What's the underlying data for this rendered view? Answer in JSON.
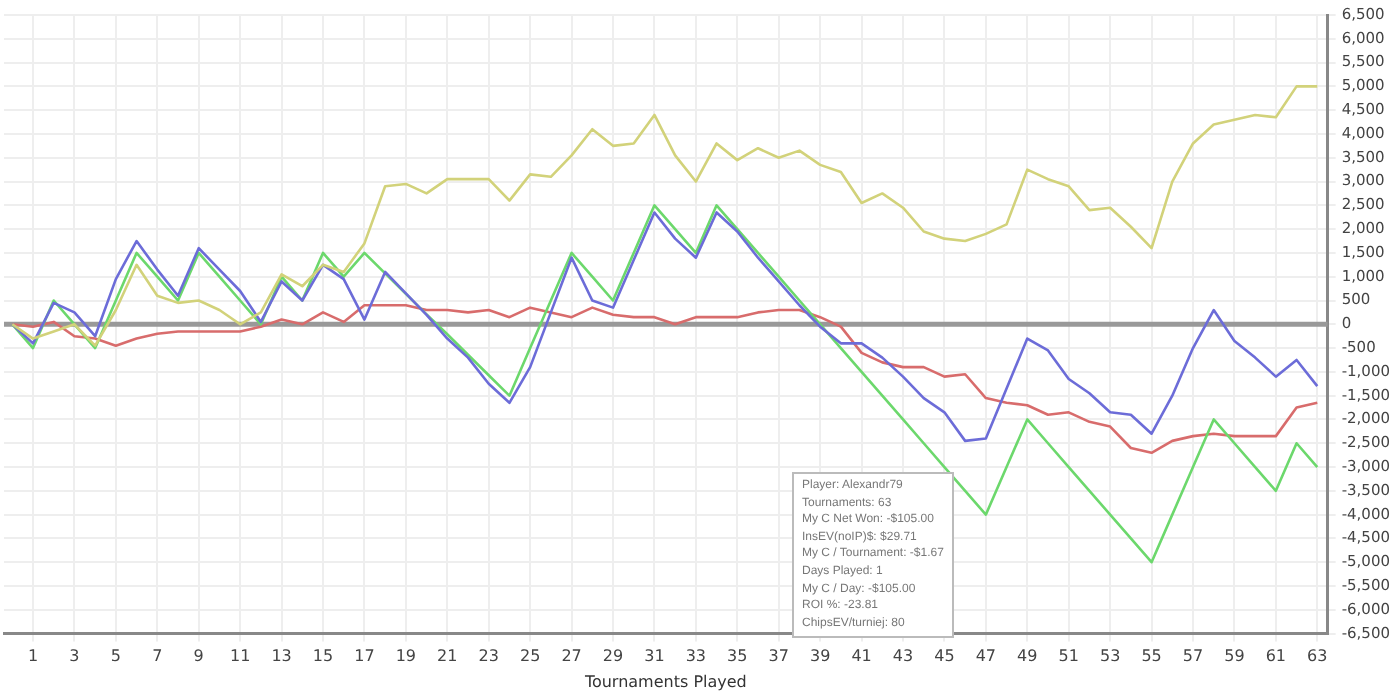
{
  "chart_data": {
    "type": "line",
    "xlabel": "Tournaments Played",
    "x": [
      0,
      1,
      2,
      3,
      4,
      5,
      6,
      7,
      8,
      9,
      10,
      11,
      12,
      13,
      14,
      15,
      16,
      17,
      18,
      19,
      20,
      21,
      22,
      23,
      24,
      25,
      26,
      27,
      28,
      29,
      30,
      31,
      32,
      33,
      34,
      35,
      36,
      37,
      38,
      39,
      40,
      41,
      42,
      43,
      44,
      45,
      46,
      47,
      48,
      49,
      50,
      51,
      52,
      53,
      54,
      55,
      56,
      57,
      58,
      59,
      60,
      61,
      62,
      63
    ],
    "series": [
      {
        "color": "#d2d27a",
        "values": [
          0,
          -300,
          -150,
          0,
          -450,
          300,
          1250,
          600,
          450,
          500,
          300,
          0,
          250,
          1050,
          800,
          1250,
          1100,
          1700,
          2900,
          2950,
          2750,
          3050,
          3050,
          3050,
          2600,
          3150,
          3100,
          3550,
          4100,
          3750,
          3800,
          4400,
          3550,
          3000,
          3800,
          3450,
          3700,
          3500,
          3650,
          3350,
          3200,
          2550,
          2750,
          2450,
          1950,
          1800,
          1750,
          1900,
          2100,
          3250,
          3050,
          2900,
          2400,
          2450,
          2050,
          1600,
          3000,
          3800,
          4200,
          4300,
          4400,
          4350,
          5000,
          5000
        ]
      },
      {
        "color": "#6c6cd8",
        "values": [
          0,
          -400,
          450,
          250,
          -250,
          950,
          1750,
          1150,
          600,
          1600,
          1150,
          700,
          50,
          900,
          500,
          1250,
          950,
          100,
          1100,
          650,
          200,
          -300,
          -700,
          -1250,
          -1650,
          -900,
          250,
          1400,
          500,
          350,
          1350,
          2350,
          1800,
          1400,
          2350,
          1950,
          1400,
          900,
          400,
          -50,
          -400,
          -400,
          -700,
          -1100,
          -1550,
          -1850,
          -2450,
          -2400,
          -1350,
          -300,
          -550,
          -1150,
          -1450,
          -1850,
          -1900,
          -2300,
          -1500,
          -500,
          300,
          -350,
          -700,
          -1100,
          -750,
          -1300
        ]
      },
      {
        "color": "#6cd86c",
        "values": [
          0,
          -500,
          500,
          0,
          -500,
          500,
          1500,
          1000,
          500,
          1500,
          1000,
          500,
          0,
          1000,
          500,
          1500,
          1000,
          1500,
          1070,
          640,
          210,
          -210,
          -640,
          -1070,
          -1500,
          -500,
          500,
          1500,
          1000,
          500,
          1500,
          2500,
          2000,
          1500,
          2500,
          2000,
          1500,
          1000,
          500,
          0,
          -500,
          -1000,
          -1500,
          -2000,
          -2500,
          -3000,
          -3500,
          -4000,
          -3000,
          -2000,
          -2500,
          -3000,
          -3500,
          -4000,
          -4500,
          -5000,
          -4000,
          -3000,
          -2000,
          -2500,
          -3000,
          -3500,
          -2500,
          -3000
        ]
      },
      {
        "color": "#d86c6c",
        "values": [
          0,
          -50,
          50,
          -250,
          -300,
          -450,
          -300,
          -200,
          -150,
          -150,
          -150,
          -150,
          -50,
          100,
          0,
          250,
          50,
          400,
          400,
          400,
          300,
          300,
          250,
          300,
          150,
          350,
          250,
          150,
          350,
          200,
          150,
          150,
          0,
          150,
          150,
          150,
          250,
          300,
          300,
          150,
          -50,
          -600,
          -800,
          -900,
          -900,
          -1100,
          -1050,
          -1550,
          -1650,
          -1700,
          -1900,
          -1850,
          -2050,
          -2150,
          -2600,
          -2700,
          -2450,
          -2350,
          -2300,
          -2350,
          -2350,
          -2350,
          -1750,
          -1650
        ]
      }
    ],
    "xlim": [
      -0.4,
      63.5
    ],
    "xticks": [
      1,
      3,
      5,
      7,
      9,
      11,
      13,
      15,
      17,
      19,
      21,
      23,
      25,
      27,
      29,
      31,
      33,
      35,
      37,
      39,
      41,
      43,
      45,
      47,
      49,
      51,
      53,
      55,
      57,
      59,
      61,
      63
    ],
    "ylim": [
      -6500,
      6500
    ],
    "yticks": [
      {
        "value": -6500,
        "label": "-6,500"
      },
      {
        "value": -6000,
        "label": "-6,000"
      },
      {
        "value": -5500,
        "label": "-5,500"
      },
      {
        "value": -5000,
        "label": "-5,000"
      },
      {
        "value": -4500,
        "label": "-4,500"
      },
      {
        "value": -4000,
        "label": "-4,000"
      },
      {
        "value": -3500,
        "label": "-3,500"
      },
      {
        "value": -3000,
        "label": "-3,000"
      },
      {
        "value": -2500,
        "label": "-2,500"
      },
      {
        "value": -2000,
        "label": "-2,000"
      },
      {
        "value": -1500,
        "label": "-1,500"
      },
      {
        "value": -1000,
        "label": "-1,000"
      },
      -500,
      0,
      500,
      {
        "value": 1000,
        "label": "1,000"
      },
      {
        "value": 1500,
        "label": "1,500"
      },
      {
        "value": 2000,
        "label": "2,000"
      },
      {
        "value": 2500,
        "label": "2,500"
      },
      {
        "value": 3000,
        "label": "3,000"
      },
      {
        "value": 3500,
        "label": "3,500"
      },
      {
        "value": 4000,
        "label": "4,000"
      },
      {
        "value": 4500,
        "label": "4,500"
      },
      {
        "value": 5000,
        "label": "5,000"
      },
      {
        "value": 5500,
        "label": "5,500"
      },
      {
        "value": 6000,
        "label": "6,000"
      },
      {
        "value": 6500,
        "label": "6,500"
      }
    ],
    "ref_lines": [
      {
        "axis": "y",
        "value": 0,
        "color": "#999999"
      }
    ],
    "grid": true,
    "legend": false,
    "marker": "none",
    "line_style": "solid",
    "annotations": [
      "Player: Alexandr79",
      "Tournaments: 63",
      "My C Net Won: -$105.00",
      "InsEV(noIP)$: $29.71",
      "My C / Tournament: -$1.67",
      "Days Played: 1",
      "My C / Day: -$105.00",
      "ROI %: -23.81",
      "ChipsEV/turniej: 80"
    ]
  }
}
